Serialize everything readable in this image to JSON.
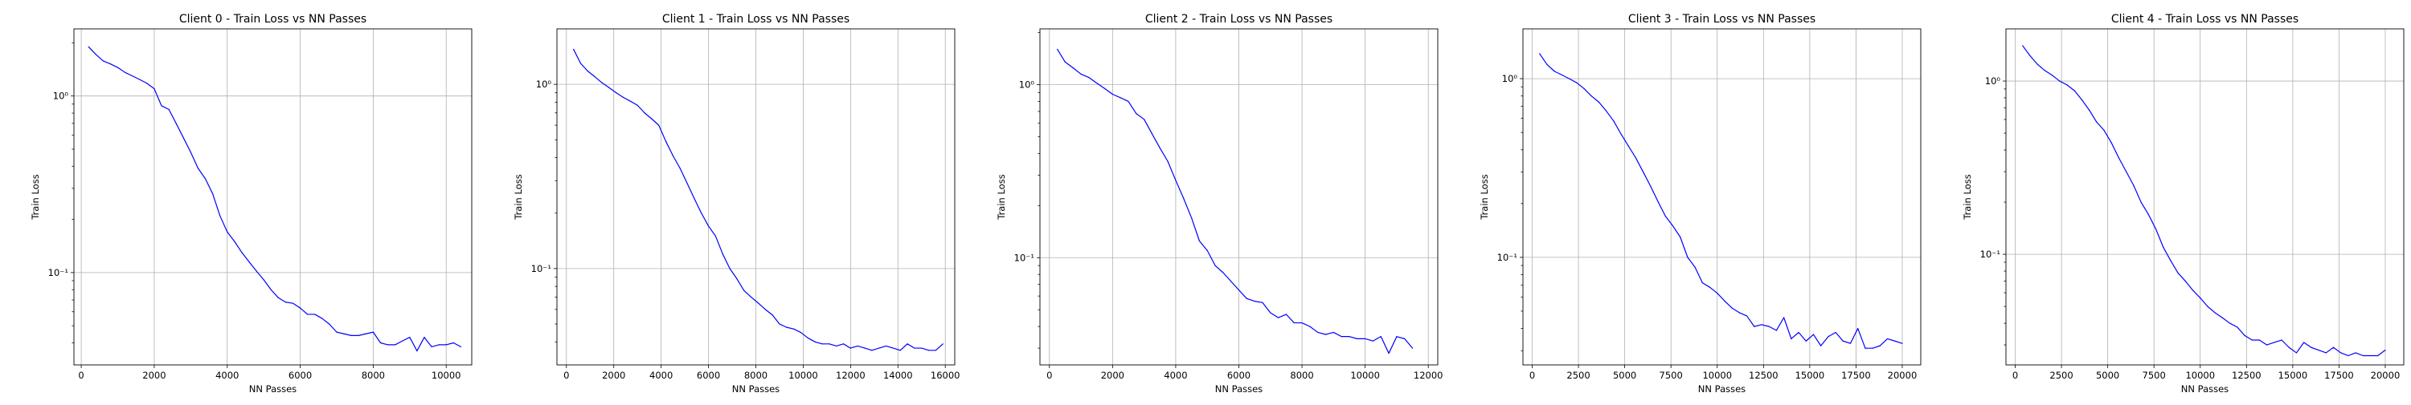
{
  "figure": {
    "background": "#ffffff"
  },
  "chart_data": [
    {
      "type": "line",
      "title": "Client 0 - Train Loss vs NN Passes",
      "xlabel": "NN Passes",
      "ylabel": "Train Loss",
      "yscale": "log",
      "grid": true,
      "line_color": "#0000ff",
      "xlim": [
        -200,
        10700
      ],
      "ylim": [
        0.03,
        2.4
      ],
      "xticks": [
        0,
        2000,
        4000,
        6000,
        8000,
        10000
      ],
      "xtick_labels": [
        "0",
        "2000",
        "4000",
        "6000",
        "8000",
        "10000"
      ],
      "yticks": [
        0.1,
        1
      ],
      "ytick_labels": [
        "10⁻¹",
        "10⁰"
      ],
      "series": [
        {
          "x": [
            200,
            400,
            600,
            800,
            1000,
            1200,
            1400,
            1600,
            1800,
            2000,
            2200,
            2400,
            2600,
            2800,
            3000,
            3200,
            3400,
            3600,
            3800,
            4000,
            4200,
            4400,
            4600,
            4800,
            5000,
            5200,
            5400,
            5600,
            5800,
            6000,
            6200,
            6400,
            6600,
            6800,
            7000,
            7200,
            7400,
            7600,
            7800,
            8000,
            8200,
            8400,
            8600,
            8800,
            9000,
            9200,
            9400,
            9600,
            9800,
            10000,
            10200,
            10400
          ],
          "y": [
            1.9,
            1.72,
            1.58,
            1.52,
            1.45,
            1.36,
            1.3,
            1.24,
            1.18,
            1.1,
            0.88,
            0.84,
            0.7,
            0.58,
            0.48,
            0.39,
            0.34,
            0.28,
            0.21,
            0.17,
            0.15,
            0.13,
            0.115,
            0.102,
            0.091,
            0.08,
            0.072,
            0.068,
            0.067,
            0.063,
            0.058,
            0.058,
            0.055,
            0.051,
            0.046,
            0.045,
            0.044,
            0.044,
            0.045,
            0.046,
            0.04,
            0.039,
            0.039,
            0.041,
            0.043,
            0.036,
            0.043,
            0.038,
            0.039,
            0.039,
            0.04,
            0.038
          ]
        }
      ]
    },
    {
      "type": "line",
      "title": "Client 1 - Train Loss vs NN Passes",
      "xlabel": "NN Passes",
      "ylabel": "Train Loss",
      "yscale": "log",
      "grid": true,
      "line_color": "#0000ff",
      "xlim": [
        -400,
        16400
      ],
      "ylim": [
        0.03,
        2.0
      ],
      "xticks": [
        0,
        2000,
        4000,
        6000,
        8000,
        10000,
        12000,
        14000,
        16000
      ],
      "xtick_labels": [
        "0",
        "2000",
        "4000",
        "6000",
        "8000",
        "10000",
        "12000",
        "14000",
        "16000"
      ],
      "yticks": [
        0.1,
        1
      ],
      "ytick_labels": [
        "10⁻¹",
        "10⁰"
      ],
      "series": [
        {
          "x": [
            300,
            600,
            900,
            1200,
            1500,
            1800,
            2100,
            2400,
            2700,
            3000,
            3300,
            3600,
            3900,
            4200,
            4500,
            4800,
            5100,
            5400,
            5700,
            6000,
            6300,
            6600,
            6900,
            7200,
            7500,
            7800,
            8100,
            8400,
            8700,
            9000,
            9300,
            9600,
            9900,
            10200,
            10500,
            10800,
            11100,
            11400,
            11700,
            12000,
            12300,
            12600,
            12900,
            13200,
            13500,
            13800,
            14100,
            14400,
            14700,
            15000,
            15300,
            15600,
            15900
          ],
          "y": [
            1.55,
            1.3,
            1.18,
            1.1,
            1.02,
            0.96,
            0.9,
            0.85,
            0.81,
            0.77,
            0.7,
            0.65,
            0.6,
            0.49,
            0.41,
            0.35,
            0.29,
            0.24,
            0.2,
            0.17,
            0.15,
            0.12,
            0.1,
            0.088,
            0.076,
            0.07,
            0.065,
            0.06,
            0.056,
            0.05,
            0.048,
            0.047,
            0.045,
            0.042,
            0.04,
            0.039,
            0.039,
            0.038,
            0.039,
            0.037,
            0.038,
            0.037,
            0.036,
            0.037,
            0.038,
            0.037,
            0.036,
            0.039,
            0.037,
            0.037,
            0.036,
            0.036,
            0.039
          ]
        }
      ]
    },
    {
      "type": "line",
      "title": "Client 2 - Train Loss vs NN Passes",
      "xlabel": "NN Passes",
      "ylabel": "Train Loss",
      "yscale": "log",
      "grid": true,
      "line_color": "#0000ff",
      "xlim": [
        -300,
        12300
      ],
      "ylim": [
        0.024,
        2.1
      ],
      "xticks": [
        0,
        2000,
        4000,
        6000,
        8000,
        10000,
        12000
      ],
      "xtick_labels": [
        "0",
        "2000",
        "4000",
        "6000",
        "8000",
        "10000",
        "12000"
      ],
      "yticks": [
        0.1,
        1
      ],
      "ytick_labels": [
        "10⁻¹",
        "10⁰"
      ],
      "series": [
        {
          "x": [
            250,
            500,
            750,
            1000,
            1250,
            1500,
            1750,
            2000,
            2250,
            2500,
            2750,
            3000,
            3250,
            3500,
            3750,
            4000,
            4250,
            4500,
            4750,
            5000,
            5250,
            5500,
            5750,
            6000,
            6250,
            6500,
            6750,
            7000,
            7250,
            7500,
            7750,
            8000,
            8250,
            8500,
            8750,
            9000,
            9250,
            9500,
            9750,
            10000,
            10250,
            10500,
            10750,
            11000,
            11250,
            11500
          ],
          "y": [
            1.6,
            1.35,
            1.25,
            1.15,
            1.1,
            1.02,
            0.95,
            0.88,
            0.84,
            0.8,
            0.68,
            0.63,
            0.52,
            0.43,
            0.36,
            0.28,
            0.22,
            0.17,
            0.125,
            0.11,
            0.09,
            0.082,
            0.073,
            0.065,
            0.058,
            0.056,
            0.055,
            0.048,
            0.045,
            0.047,
            0.042,
            0.042,
            0.04,
            0.037,
            0.036,
            0.037,
            0.035,
            0.035,
            0.034,
            0.034,
            0.033,
            0.035,
            0.028,
            0.035,
            0.034,
            0.03
          ]
        }
      ]
    },
    {
      "type": "line",
      "title": "Client 3 - Train Loss vs NN Passes",
      "xlabel": "NN Passes",
      "ylabel": "Train Loss",
      "yscale": "log",
      "grid": true,
      "line_color": "#0000ff",
      "xlim": [
        -500,
        21000
      ],
      "ylim": [
        0.025,
        1.9
      ],
      "xticks": [
        0,
        2500,
        5000,
        7500,
        10000,
        12500,
        15000,
        17500,
        20000
      ],
      "xtick_labels": [
        "0",
        "2500",
        "5000",
        "7500",
        "10000",
        "12500",
        "15000",
        "17500",
        "20000"
      ],
      "yticks": [
        0.1,
        1
      ],
      "ytick_labels": [
        "10⁻¹",
        "10⁰"
      ],
      "series": [
        {
          "x": [
            400,
            800,
            1200,
            1600,
            2000,
            2400,
            2800,
            3200,
            3600,
            4000,
            4400,
            4800,
            5200,
            5600,
            6000,
            6400,
            6800,
            7200,
            7600,
            8000,
            8400,
            8800,
            9200,
            9600,
            10000,
            10400,
            10800,
            11200,
            11600,
            12000,
            12400,
            12800,
            13200,
            13600,
            14000,
            14400,
            14800,
            15200,
            15600,
            16000,
            16400,
            16800,
            17200,
            17600,
            18000,
            18400,
            18800,
            19200,
            19600,
            20000
          ],
          "y": [
            1.38,
            1.2,
            1.1,
            1.05,
            1.0,
            0.95,
            0.88,
            0.8,
            0.74,
            0.66,
            0.58,
            0.49,
            0.42,
            0.36,
            0.3,
            0.25,
            0.205,
            0.17,
            0.15,
            0.13,
            0.1,
            0.088,
            0.072,
            0.068,
            0.063,
            0.057,
            0.052,
            0.049,
            0.047,
            0.041,
            0.042,
            0.041,
            0.039,
            0.046,
            0.035,
            0.038,
            0.034,
            0.037,
            0.032,
            0.036,
            0.038,
            0.034,
            0.033,
            0.04,
            0.031,
            0.031,
            0.032,
            0.035,
            0.034,
            0.033
          ]
        }
      ]
    },
    {
      "type": "line",
      "title": "Client 4 - Train Loss vs NN Passes",
      "xlabel": "NN Passes",
      "ylabel": "Train Loss",
      "yscale": "log",
      "grid": true,
      "line_color": "#0000ff",
      "xlim": [
        -500,
        21000
      ],
      "ylim": [
        0.023,
        2.0
      ],
      "xticks": [
        0,
        2500,
        5000,
        7500,
        10000,
        12500,
        15000,
        17500,
        20000
      ],
      "xtick_labels": [
        "0",
        "2500",
        "5000",
        "7500",
        "10000",
        "12500",
        "15000",
        "17500",
        "20000"
      ],
      "yticks": [
        0.1,
        1
      ],
      "ytick_labels": [
        "10⁻¹",
        "10⁰"
      ],
      "series": [
        {
          "x": [
            400,
            800,
            1200,
            1600,
            2000,
            2400,
            2800,
            3200,
            3600,
            4000,
            4400,
            4800,
            5200,
            5600,
            6000,
            6400,
            6800,
            7200,
            7600,
            8000,
            8400,
            8800,
            9200,
            9600,
            10000,
            10400,
            10800,
            11200,
            11600,
            12000,
            12400,
            12800,
            13200,
            13600,
            14000,
            14400,
            14800,
            15200,
            15600,
            16000,
            16400,
            16800,
            17200,
            17600,
            18000,
            18400,
            18800,
            19200,
            19600,
            20000
          ],
          "y": [
            1.6,
            1.4,
            1.25,
            1.15,
            1.08,
            1.0,
            0.95,
            0.88,
            0.78,
            0.68,
            0.58,
            0.52,
            0.44,
            0.36,
            0.3,
            0.25,
            0.2,
            0.17,
            0.14,
            0.11,
            0.092,
            0.078,
            0.07,
            0.062,
            0.056,
            0.05,
            0.046,
            0.043,
            0.04,
            0.038,
            0.034,
            0.032,
            0.032,
            0.03,
            0.031,
            0.032,
            0.029,
            0.027,
            0.031,
            0.029,
            0.028,
            0.027,
            0.029,
            0.027,
            0.026,
            0.027,
            0.026,
            0.026,
            0.026,
            0.028
          ]
        }
      ]
    }
  ]
}
